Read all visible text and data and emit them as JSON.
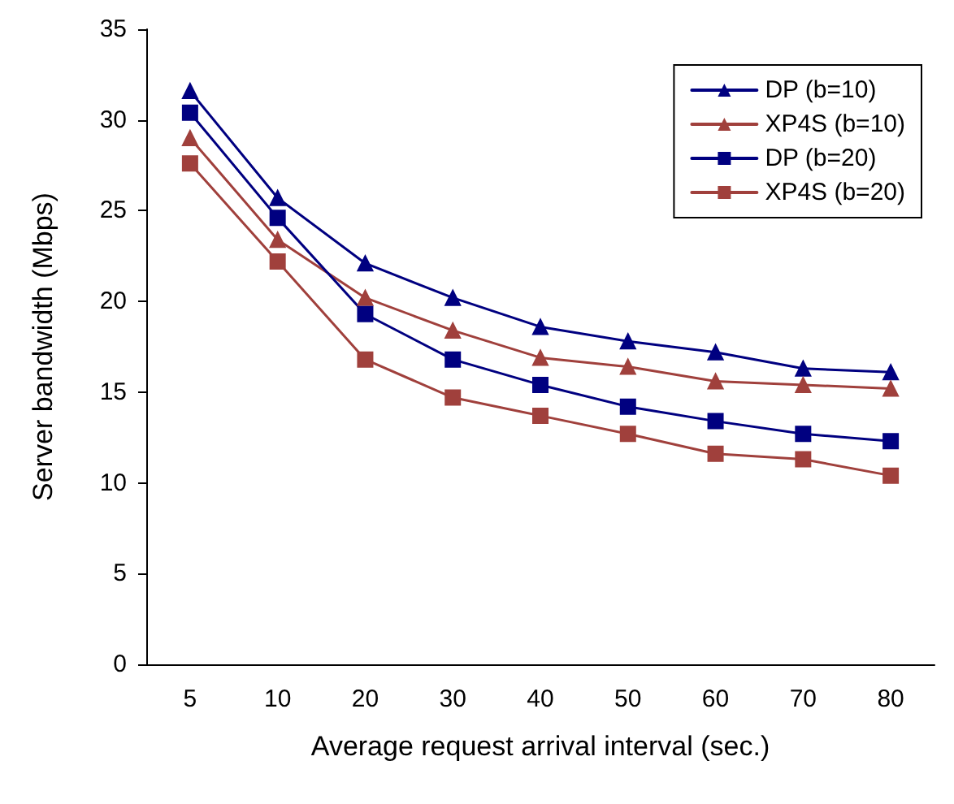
{
  "chart_data": {
    "type": "line",
    "xlabel": "Average request arrival interval (sec.)",
    "ylabel": "Server bandwidth (Mbps)",
    "categories": [
      "5",
      "10",
      "20",
      "30",
      "40",
      "50",
      "60",
      "70",
      "80"
    ],
    "series": [
      {
        "name": "DP (b=10)",
        "color": "#000080",
        "marker": "triangle",
        "values": [
          31.6,
          25.7,
          22.1,
          20.2,
          18.6,
          17.8,
          17.2,
          16.3,
          16.1
        ]
      },
      {
        "name": "XP4S (b=10)",
        "color": "#a0403c",
        "marker": "triangle",
        "values": [
          29.0,
          23.4,
          20.2,
          18.4,
          16.9,
          16.4,
          15.6,
          15.4,
          15.2
        ]
      },
      {
        "name": "DP (b=20)",
        "color": "#000080",
        "marker": "square",
        "values": [
          30.4,
          24.6,
          19.3,
          16.8,
          15.4,
          14.2,
          13.4,
          12.7,
          12.3
        ]
      },
      {
        "name": "XP4S (b=20)",
        "color": "#a0403c",
        "marker": "square",
        "values": [
          27.6,
          22.2,
          16.8,
          14.7,
          13.7,
          12.7,
          11.6,
          11.3,
          10.4
        ]
      }
    ],
    "ylim": [
      0,
      35
    ],
    "yticks": [
      0,
      5,
      10,
      15,
      20,
      25,
      30,
      35
    ],
    "grid": false,
    "legend": "top right"
  }
}
